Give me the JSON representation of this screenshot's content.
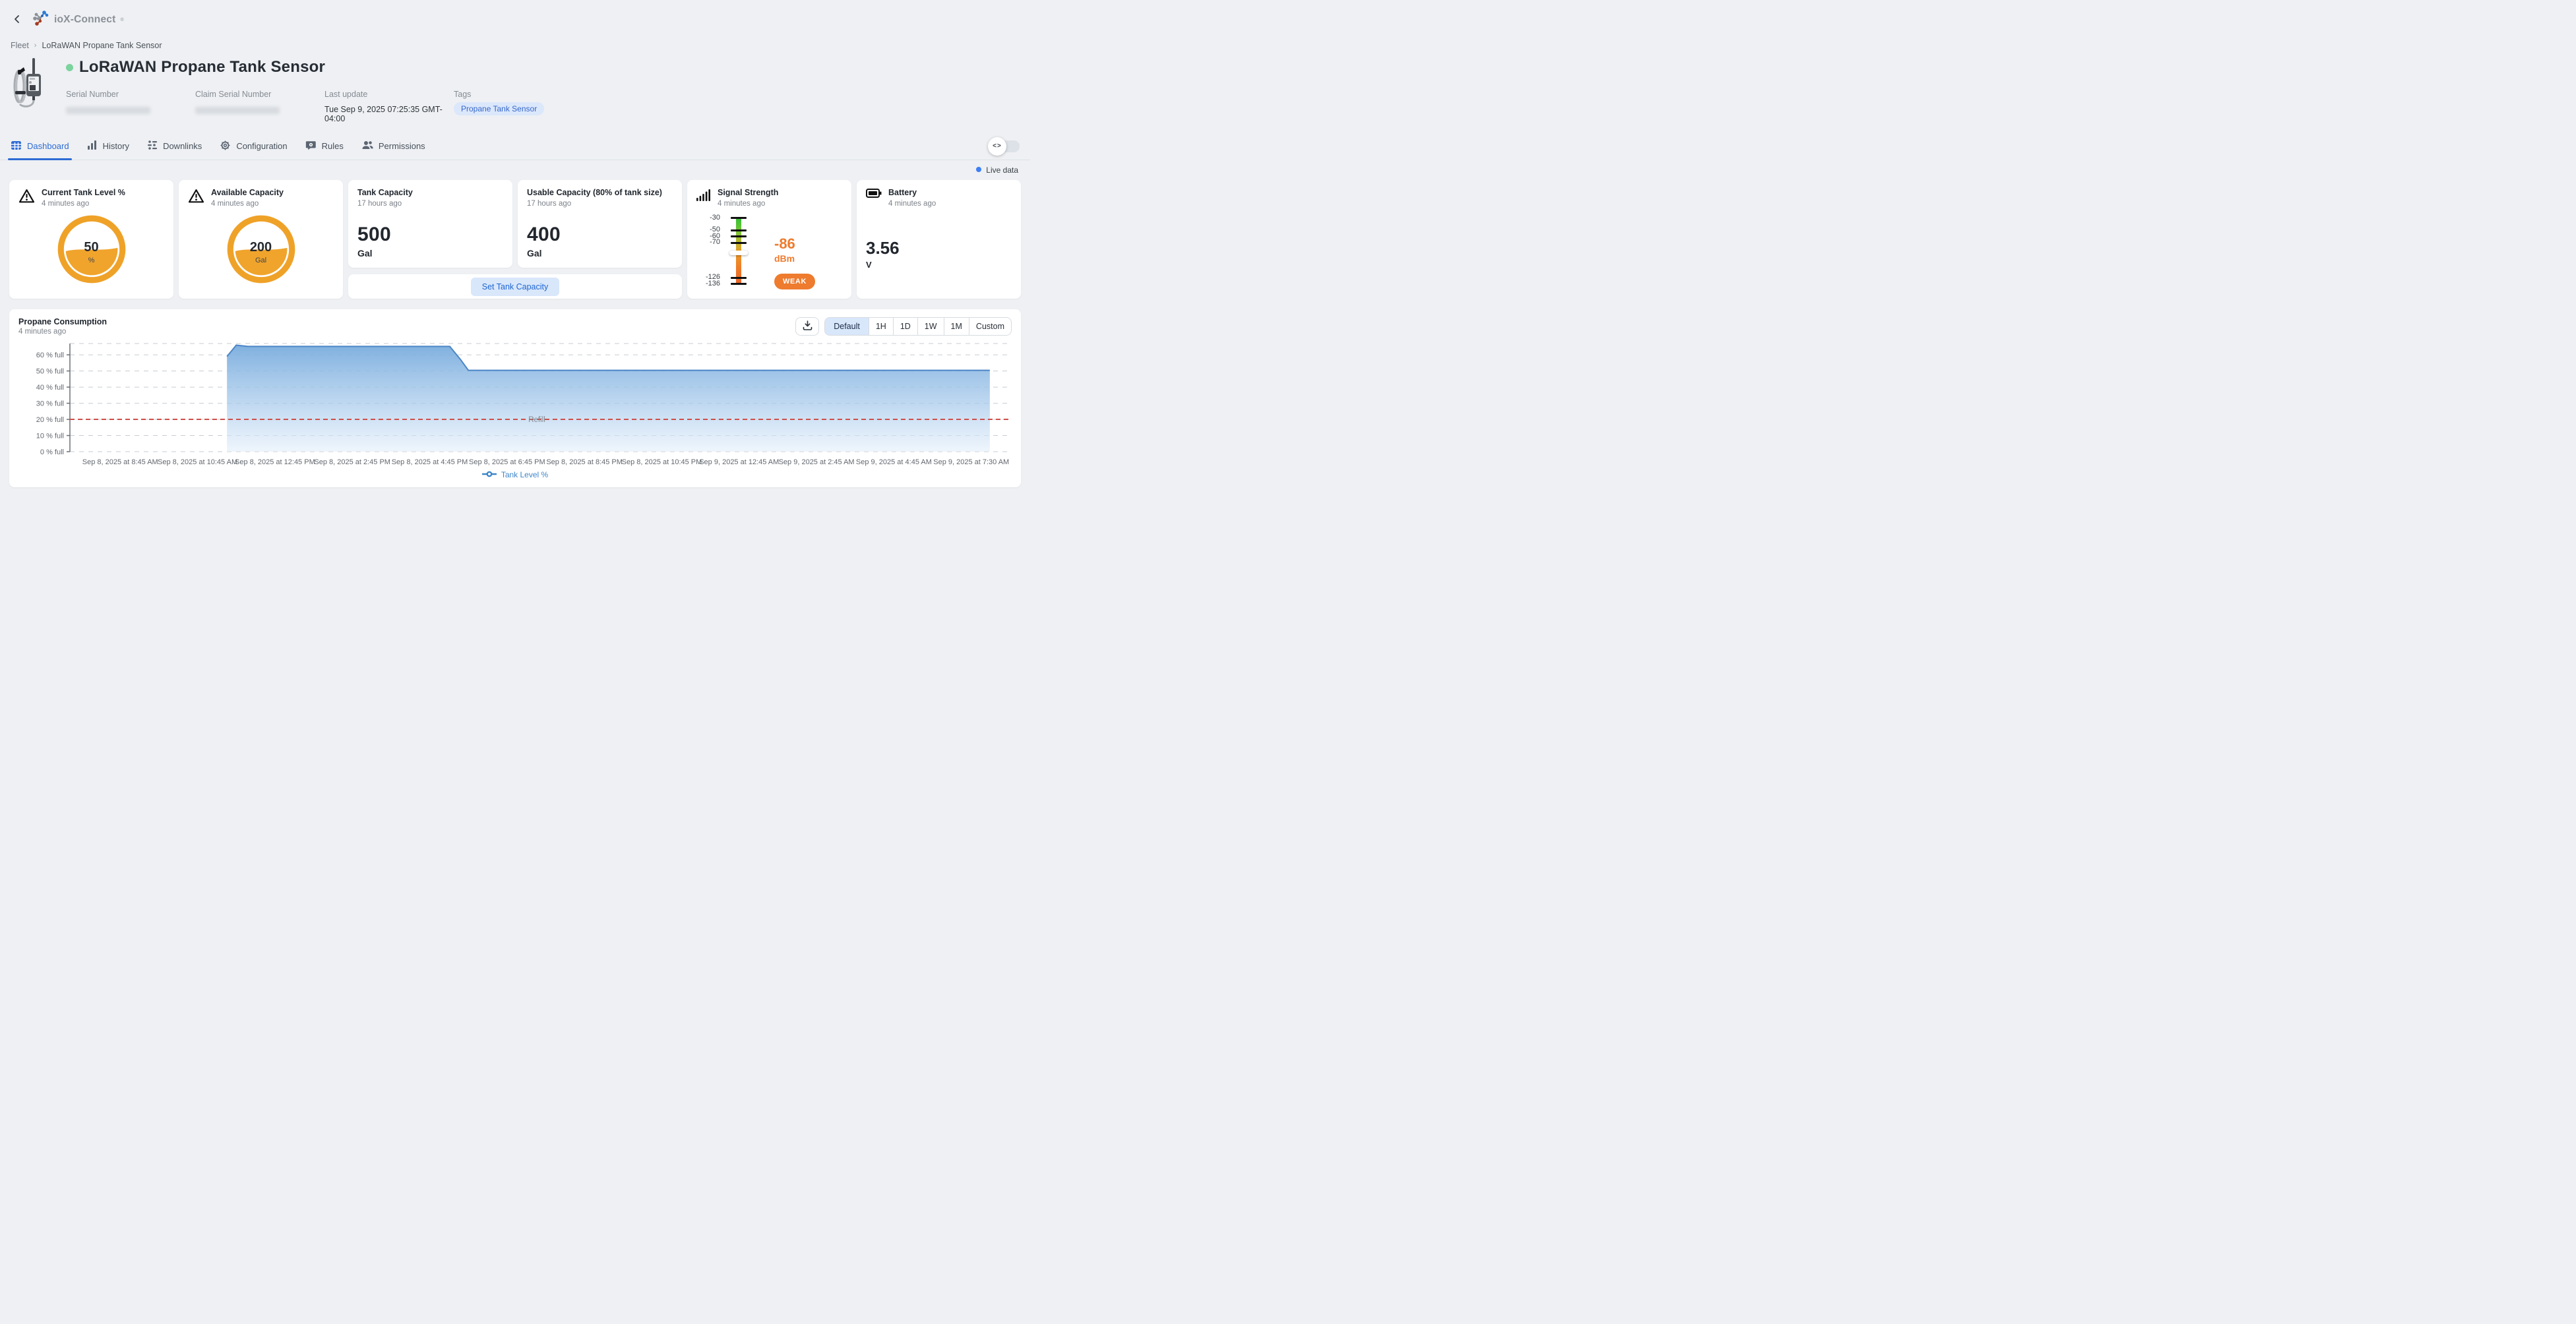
{
  "topbar": {
    "brand": "ioX-Connect",
    "registered": "®"
  },
  "breadcrumb": {
    "root": "Fleet",
    "current": "LoRaWAN Propane Tank Sensor"
  },
  "device": {
    "title": "LoRaWAN Propane Tank Sensor",
    "serial_label": "Serial Number",
    "claim_serial_label": "Claim Serial Number",
    "last_update_label": "Last update",
    "last_update": "Tue Sep 9, 2025 07:25:35 GMT-04:00",
    "tags_label": "Tags",
    "tag": "Propane Tank Sensor"
  },
  "tabs": [
    {
      "label": "Dashboard",
      "active": true
    },
    {
      "label": "History",
      "active": false
    },
    {
      "label": "Downlinks",
      "active": false
    },
    {
      "label": "Configuration",
      "active": false
    },
    {
      "label": "Rules",
      "active": false
    },
    {
      "label": "Permissions",
      "active": false
    }
  ],
  "live_data_label": "Live data",
  "cards": {
    "current_level": {
      "title": "Current Tank Level %",
      "updated": "4 minutes ago",
      "value": "50",
      "unit": "%",
      "fill_pct": 50
    },
    "available_capacity": {
      "title": "Available Capacity",
      "updated": "4 minutes ago",
      "value": "200",
      "unit": "Gal",
      "fill_pct": 50
    },
    "tank_capacity": {
      "title": "Tank Capacity",
      "updated": "17 hours ago",
      "value": "500",
      "unit": "Gal"
    },
    "usable_capacity": {
      "title": "Usable Capacity (80% of tank size)",
      "updated": "17 hours ago",
      "value": "400",
      "unit": "Gal"
    },
    "set_tank_capacity_label": "Set Tank Capacity",
    "signal": {
      "title": "Signal Strength",
      "updated": "4 minutes ago",
      "value": "-86",
      "unit": "dBm",
      "status": "WEAK",
      "scale_top": -30,
      "scale_bottom": -136,
      "ticks": [
        -30,
        -50,
        -60,
        -70,
        -126,
        -136
      ]
    },
    "battery": {
      "title": "Battery",
      "updated": "4 minutes ago",
      "value": "3.56",
      "unit": "V"
    }
  },
  "chart_controls": {
    "ranges": [
      "Default",
      "1H",
      "1D",
      "1W",
      "1M",
      "Custom"
    ],
    "active_range": "Default"
  },
  "chart_data": {
    "type": "area",
    "title": "Propane Consumption",
    "updated": "4 minutes ago",
    "legend": "Tank Level %",
    "legend_position": "bottom",
    "grid": "dashed",
    "y_max": 67,
    "x_range": [
      -0.65,
      11.42
    ],
    "y_ticks": [
      {
        "v": 0,
        "label": "0 % full"
      },
      {
        "v": 10,
        "label": "10 % full"
      },
      {
        "v": 20,
        "label": "20 % full"
      },
      {
        "v": 30,
        "label": "30 % full"
      },
      {
        "v": 40,
        "label": "40 % full"
      },
      {
        "v": 50,
        "label": "50 % full"
      },
      {
        "v": 60,
        "label": "60 % full"
      }
    ],
    "x_ticks": [
      "Sep 8, 2025 at 8:45 AM",
      "Sep 8, 2025 at 10:45 AM",
      "Sep 8, 2025 at 12:45 PM",
      "Sep 8, 2025 at 2:45 PM",
      "Sep 8, 2025 at 4:45 PM",
      "Sep 8, 2025 at 6:45 PM",
      "Sep 8, 2025 at 8:45 PM",
      "Sep 8, 2025 at 10:45 PM",
      "Sep 9, 2025 at 12:45 AM",
      "Sep 9, 2025 at 2:45 AM",
      "Sep 9, 2025 at 4:45 AM",
      "Sep 9, 2025 at 7:30 AM"
    ],
    "threshold": {
      "value": 20,
      "label": "Refill",
      "color": "#cf4f4a"
    },
    "series": [
      {
        "name": "Tank Level %",
        "color": "#4c86c6",
        "points": [
          {
            "time": "Sep 8, 2025 ~11:30 AM",
            "t": 1.38,
            "value": 59
          },
          {
            "time": "Sep 8, 2025 ~11:45 AM",
            "t": 1.5,
            "value": 66
          },
          {
            "time": "Sep 8, 2025 ~12:15 PM",
            "t": 1.65,
            "value": 65.2
          },
          {
            "time": "Sep 8, 2025 ~5:15 PM",
            "t": 4.26,
            "value": 65.2
          },
          {
            "time": "Sep 8, 2025 ~5:30 PM",
            "t": 4.4,
            "value": 57
          },
          {
            "time": "Sep 8, 2025 ~5:45 PM",
            "t": 4.5,
            "value": 50.4
          },
          {
            "time": "Sep 9, 2025 at 7:30 AM",
            "t": 11.24,
            "value": 50.4
          }
        ]
      }
    ]
  },
  "colors": {
    "accent_blue": "#2e6bd4",
    "gauge_orange": "#efa228",
    "signal_orange": "#ee7b2e",
    "status_green": "#7bd39d",
    "live_blue": "#3f7ef4",
    "refill_red": "#cf4f4a",
    "series_blue": "#4c86c6"
  }
}
